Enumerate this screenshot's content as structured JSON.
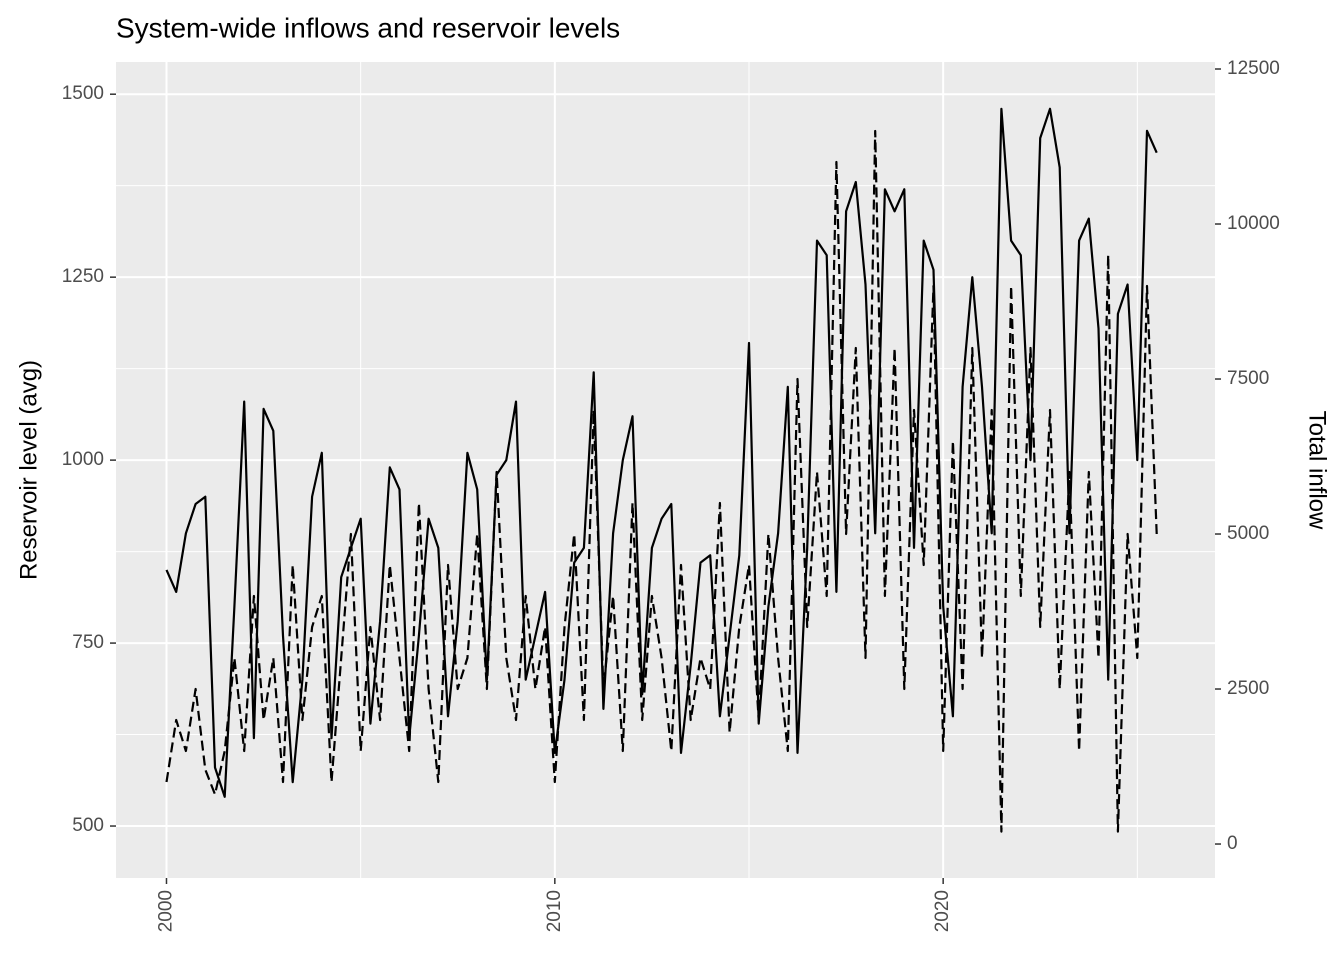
{
  "chart_data": {
    "type": "line",
    "title": "System-wide inflows and reservoir levels",
    "y_label": "Reservoir level (avg)",
    "y2_label": "Total inflow",
    "x": [
      2000,
      2000.25,
      2000.5,
      2000.75,
      2001,
      2001.25,
      2001.5,
      2001.75,
      2002,
      2002.25,
      2002.5,
      2002.75,
      2003,
      2003.25,
      2003.5,
      2003.75,
      2004,
      2004.25,
      2004.5,
      2004.75,
      2005,
      2005.25,
      2005.5,
      2005.75,
      2006,
      2006.25,
      2006.5,
      2006.75,
      2007,
      2007.25,
      2007.5,
      2007.75,
      2008,
      2008.25,
      2008.5,
      2008.75,
      2009,
      2009.25,
      2009.5,
      2009.75,
      2010,
      2010.25,
      2010.5,
      2010.75,
      2011,
      2011.25,
      2011.5,
      2011.75,
      2012,
      2012.25,
      2012.5,
      2012.75,
      2013,
      2013.25,
      2013.5,
      2013.75,
      2014,
      2014.25,
      2014.5,
      2014.75,
      2015,
      2015.25,
      2015.5,
      2015.75,
      2016,
      2016.25,
      2016.5,
      2016.75,
      2017,
      2017.25,
      2017.5,
      2017.75,
      2018,
      2018.25,
      2018.5,
      2018.75,
      2019,
      2019.25,
      2019.5,
      2019.75,
      2020,
      2020.25,
      2020.5,
      2020.75,
      2021,
      2021.25,
      2021.5,
      2021.75,
      2022,
      2022.25,
      2022.5,
      2022.75,
      2023,
      2023.25,
      2023.5,
      2023.75,
      2024,
      2024.25,
      2024.5,
      2024.75,
      2025,
      2025.25,
      2025.5
    ],
    "series": [
      {
        "color": "#000000",
        "linetype": "solid",
        "axis": "y",
        "values": [
          850,
          820,
          900,
          940,
          950,
          580,
          540,
          800,
          1080,
          620,
          1070,
          1040,
          760,
          560,
          700,
          950,
          1010,
          620,
          840,
          880,
          920,
          640,
          780,
          990,
          960,
          620,
          760,
          920,
          880,
          650,
          780,
          1010,
          960,
          700,
          980,
          1000,
          1080,
          700,
          760,
          820,
          600,
          700,
          860,
          880,
          1120,
          660,
          900,
          1000,
          1060,
          680,
          880,
          920,
          940,
          600,
          720,
          860,
          870,
          650,
          760,
          870,
          1160,
          640,
          800,
          900,
          1100,
          600,
          880,
          1300,
          1280,
          820,
          1340,
          1380,
          1240,
          900,
          1370,
          1340,
          1370,
          880,
          1300,
          1260,
          800,
          650,
          1100,
          1250,
          1100,
          900,
          1480,
          1300,
          1280,
          1000,
          1440,
          1480,
          1400,
          900,
          1300,
          1330,
          1180,
          700,
          1200,
          1240,
          1000,
          1450,
          1420
        ]
      },
      {
        "color": "#000000",
        "linetype": "dashed",
        "axis": "y2",
        "values": [
          1000,
          2000,
          1500,
          2500,
          1200,
          800,
          1500,
          3000,
          1500,
          4000,
          2000,
          3000,
          1000,
          4500,
          2000,
          3500,
          4000,
          1000,
          3000,
          5000,
          1500,
          3500,
          2000,
          4500,
          3000,
          1500,
          5500,
          2500,
          1000,
          4500,
          2500,
          3000,
          5000,
          2500,
          6000,
          3000,
          2000,
          4000,
          2500,
          3500,
          1000,
          3500,
          5000,
          2000,
          7000,
          2500,
          4000,
          1500,
          5500,
          2000,
          4000,
          3000,
          1500,
          4500,
          2000,
          3000,
          2500,
          5500,
          1800,
          3500,
          4500,
          2000,
          5000,
          3000,
          1500,
          7500,
          3500,
          6000,
          4000,
          11000,
          5000,
          8000,
          3000,
          11500,
          4000,
          8000,
          2500,
          7000,
          4500,
          9000,
          1500,
          6500,
          2500,
          8000,
          3000,
          7000,
          200,
          9000,
          4000,
          8000,
          3500,
          7000,
          2500,
          6000,
          1500,
          6000,
          3000,
          9500,
          200,
          5000,
          3000,
          9000,
          5000
        ]
      }
    ],
    "xlim": [
      1998.7,
      2027.0
    ],
    "xticks": [
      2000,
      2010,
      2020
    ],
    "ylim": [
      429,
      1544
    ],
    "yticks": [
      500,
      750,
      1000,
      1250,
      1500
    ],
    "y2lim": [
      -548,
      12613
    ],
    "y2ticks": [
      0,
      2500,
      5000,
      7500,
      10000,
      12500
    ],
    "grid": true
  }
}
